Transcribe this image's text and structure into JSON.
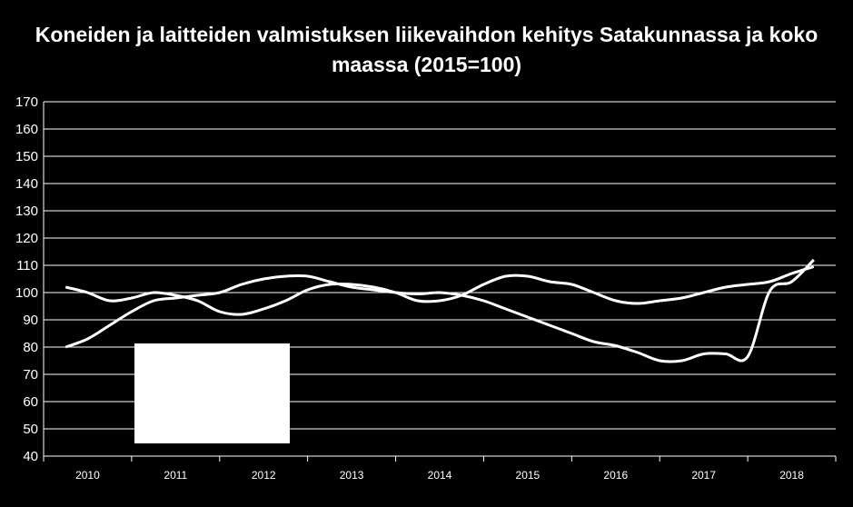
{
  "chart_data": {
    "type": "line",
    "title": "Koneiden ja laitteiden valmistuksen liikevaihdon kehitys Satakunnassa ja koko maassa (2015=100)",
    "xlabel": "",
    "ylabel": "",
    "ylim": [
      40,
      170
    ],
    "yticks": [
      "170",
      "160",
      "150",
      "140",
      "130",
      "120",
      "110",
      "100",
      "90",
      "80",
      "70",
      "60",
      "50",
      "40"
    ],
    "categories": [
      "2010",
      "2011",
      "2012",
      "2013",
      "2014",
      "2015",
      "2016",
      "2017",
      "2018"
    ],
    "grid": true,
    "legend": "obscured",
    "line_color": "#ffffff",
    "background": "#000000",
    "series": [
      {
        "x": [
          2009.75,
          2010.0,
          2010.25,
          2010.5,
          2010.75,
          2011.0,
          2011.25,
          2011.5,
          2011.75,
          2012.0,
          2012.25,
          2012.5,
          2012.75,
          2013.0,
          2013.25,
          2013.5,
          2013.75,
          2014.0,
          2014.25,
          2014.5,
          2014.75,
          2015.0,
          2015.25,
          2015.5,
          2015.75,
          2016.0,
          2016.25,
          2016.5,
          2016.75,
          2017.0,
          2017.25,
          2017.5,
          2017.75,
          2018.0,
          2018.25
        ],
        "values": [
          102,
          100,
          97,
          98,
          100,
          99,
          97,
          93,
          92,
          94,
          97,
          101,
          103,
          103,
          102,
          100,
          97,
          97,
          99,
          103,
          106,
          106,
          104,
          103,
          100,
          97,
          96,
          97,
          98,
          100,
          102,
          103,
          104,
          107,
          109.5
        ]
      },
      {
        "x": [
          2009.75,
          2010.0,
          2010.25,
          2010.5,
          2010.75,
          2011.0,
          2011.25,
          2011.5,
          2011.75,
          2012.0,
          2012.25,
          2012.5,
          2012.75,
          2013.0,
          2013.25,
          2013.5,
          2013.75,
          2014.0,
          2014.25,
          2014.5,
          2014.75,
          2015.0,
          2015.25,
          2015.5,
          2015.75,
          2016.0,
          2016.25,
          2016.5,
          2016.75,
          2017.0,
          2017.25,
          2017.5,
          2017.75,
          2018.0,
          2018.25
        ],
        "values": [
          80,
          83,
          88,
          93,
          97,
          98,
          99,
          100,
          103,
          105,
          106,
          106,
          104,
          102,
          101,
          100,
          99.5,
          100,
          99,
          97,
          94,
          91,
          88,
          85,
          82,
          80.5,
          78,
          75,
          75,
          77.5,
          77.5,
          76.5,
          100.5,
          104,
          112
        ]
      }
    ]
  }
}
